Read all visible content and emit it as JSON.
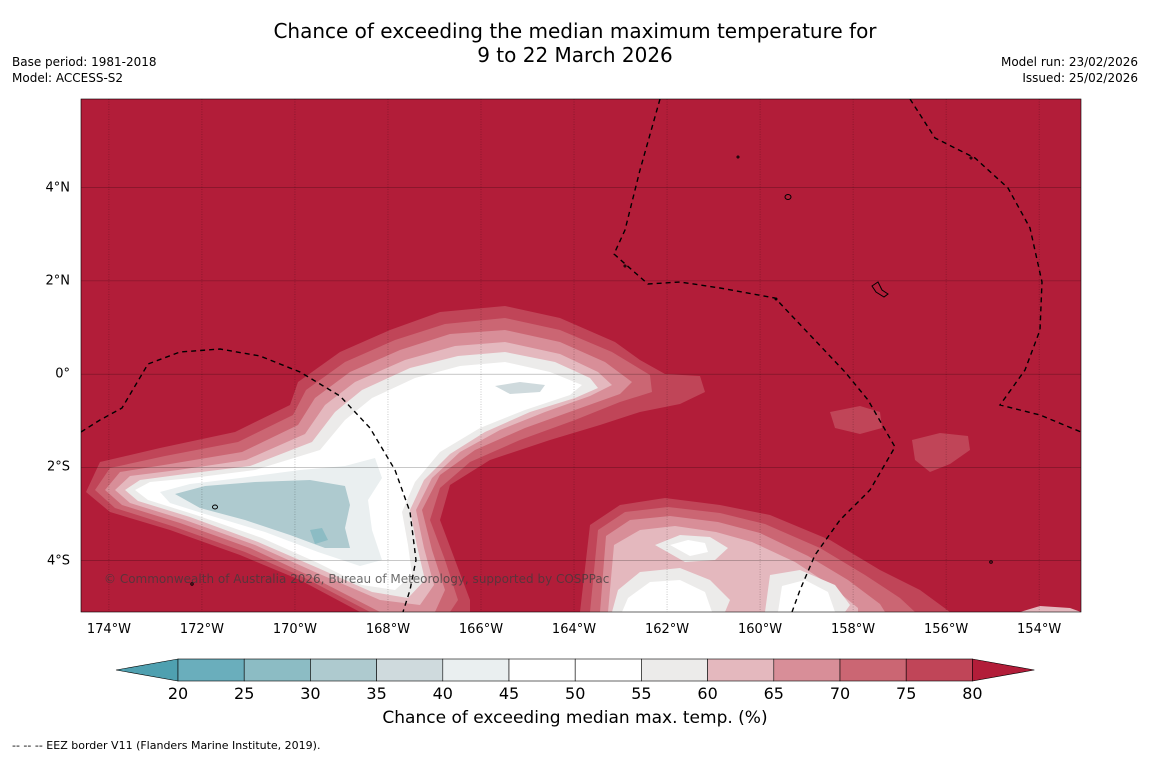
{
  "title": {
    "line1": "Chance of exceeding the median maximum temperature for",
    "line2": "9 to 22 March 2026"
  },
  "meta_left": {
    "base_period": "Base period: 1981-2018",
    "model": "Model: ACCESS-S2"
  },
  "meta_right": {
    "model_run": "Model run: 23/02/2026",
    "issued": "Issued: 25/02/2026"
  },
  "map": {
    "lat_ticks": [
      "4°N",
      "2°N",
      "0°",
      "2°S",
      "4°S"
    ],
    "lat_values": [
      4,
      2,
      0,
      -2,
      -4
    ],
    "lon_ticks": [
      "174°W",
      "172°W",
      "170°W",
      "168°W",
      "166°W",
      "164°W",
      "162°W",
      "160°W",
      "158°W",
      "156°W",
      "154°W"
    ],
    "lon_values": [
      -174,
      -172,
      -170,
      -168,
      -166,
      -164,
      -162,
      -160,
      -158,
      -156,
      -154
    ],
    "extent": {
      "lon_min": -174.6,
      "lon_max": -153.1,
      "lat_min": -5.1,
      "lat_max": 5.9
    },
    "background_class": "80",
    "copyright": "© Commonwealth of Australia 2026, Bureau of Meteorology, supported by COSPPac"
  },
  "colorbar": {
    "ticks": [
      "20",
      "25",
      "30",
      "35",
      "40",
      "45",
      "50",
      "55",
      "60",
      "65",
      "70",
      "75",
      "80"
    ],
    "colors": [
      "#4fa0b0",
      "#6aaebc",
      "#8cbcc4",
      "#aecacf",
      "#cfdadd",
      "#eaeff0",
      "#ffffff",
      "#ffffff",
      "#ecebea",
      "#e4b8be",
      "#d88e98",
      "#cb6673",
      "#c04558",
      "#b21d39"
    ],
    "title": "Chance of exceeding median max. temp. (%)"
  },
  "footnote": "--  --  -- EEZ border V11 (Flanders Marine Institute, 2019)."
}
